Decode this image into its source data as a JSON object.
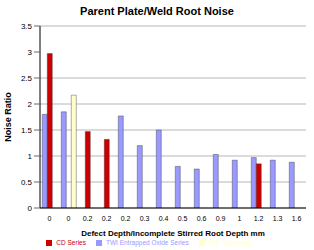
{
  "chart_data": {
    "type": "bar",
    "title": "Parent Plate/Weld Root Noise",
    "x_label": "Defect Depth/Incomplete Stirred Root Depth mm",
    "y_label": "Noise Ratio",
    "categories": [
      "0",
      "0",
      "0.2",
      "0.2",
      "0.2",
      "0.3",
      "0.4",
      "0.5",
      "0.6",
      "0.9",
      "1",
      "1.2",
      "1.3",
      "1.6"
    ],
    "series": [
      {
        "name": "TWI Entrapped Oxide Series",
        "color": "#9999ff",
        "values": [
          1.8,
          1.85,
          null,
          null,
          1.77,
          1.2,
          1.5,
          0.8,
          0.75,
          1.03,
          0.92,
          0.97,
          0.92,
          0.88
        ]
      },
      {
        "name": "CD Series",
        "color": "#cc0000",
        "values": [
          2.97,
          null,
          1.47,
          1.32,
          null,
          null,
          null,
          null,
          null,
          null,
          null,
          0.85,
          null,
          null
        ]
      },
      {
        "name": "TWI Optimised",
        "color": "#ffffcc",
        "values": [
          null,
          2.17,
          null,
          null,
          null,
          null,
          null,
          null,
          null,
          null,
          null,
          null,
          null,
          null
        ]
      }
    ],
    "ylim": [
      0,
      3.5
    ],
    "yticks": [
      0,
      0.5,
      1,
      1.5,
      2,
      2.5,
      3,
      3.5
    ],
    "grid": true,
    "legend": "bottom"
  }
}
